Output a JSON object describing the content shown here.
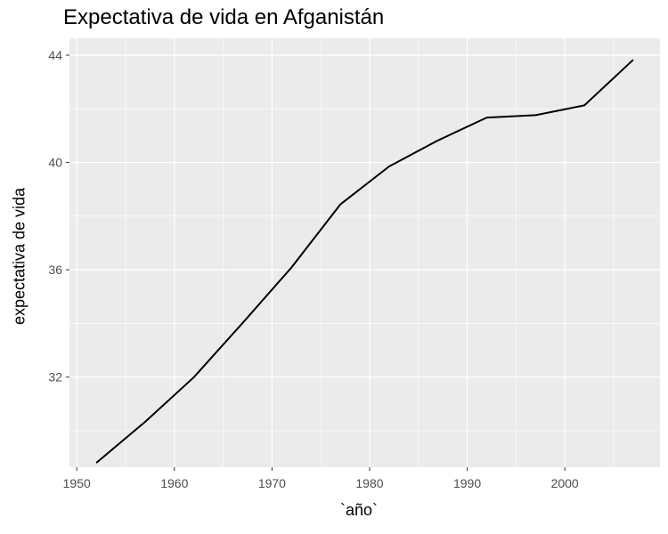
{
  "chart_data": {
    "type": "line",
    "title": "Expectativa de vida en Afganistán",
    "xlabel": "`año`",
    "ylabel": "expectativa de vida",
    "xlim": [
      1949.25,
      2009.75
    ],
    "ylim": [
      28.64,
      44.63
    ],
    "x_ticks": [
      1950,
      1960,
      1970,
      1980,
      1990,
      2000
    ],
    "y_ticks": [
      32,
      36,
      40,
      44
    ],
    "grid": true,
    "series": [
      {
        "color": "#000000",
        "x": [
          1952,
          1957,
          1962,
          1967,
          1972,
          1977,
          1982,
          1987,
          1992,
          1997,
          2002,
          2007
        ],
        "y": [
          28.801,
          30.332,
          31.997,
          34.02,
          36.088,
          38.438,
          39.854,
          40.822,
          41.674,
          41.763,
          42.129,
          43.828
        ]
      }
    ]
  }
}
